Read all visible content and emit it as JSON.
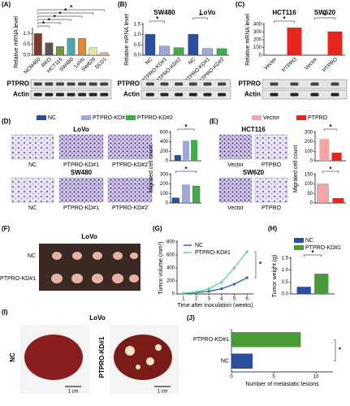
{
  "chart_data": [
    {
      "type": "bar",
      "panel": "(A)",
      "ylabel": "Relative mRNA level",
      "categories": [
        "NCM460",
        "RKO",
        "HCT116",
        "SW480",
        "LoVo",
        "SW620",
        "DLD1"
      ],
      "values": [
        1.0,
        0.57,
        0.4,
        0.78,
        0.78,
        0.35,
        0.12
      ],
      "colors": [
        "#7b3b30",
        "#555555",
        "#6f9a3c",
        "#4aa7ad",
        "#dd8a30",
        "#e9e2a6",
        "#f2b27e"
      ],
      "ylim": [
        0,
        1.2
      ],
      "yticks": [
        {
          "value": 0,
          "label": "0.0"
        },
        {
          "value": 0.5,
          "label": "0.5"
        },
        {
          "value": 1,
          "label": "1.0"
        }
      ],
      "significance": [
        "*",
        "*",
        "*",
        "*",
        "*",
        "*"
      ],
      "blot_labels": [
        "PTPRO",
        "Actin"
      ]
    },
    {
      "type": "bar",
      "panel": "(B)",
      "ylabel": "Relative mRNA level",
      "groups": [
        "SW480",
        "LoVo"
      ],
      "categories": [
        "NC",
        "PTPRO-KD#1",
        "PTPRO-KD#2",
        "NC",
        "PTPRO-KD#1",
        "PTPRO-KD#2"
      ],
      "values": [
        1.02,
        0.44,
        0.37,
        1.02,
        0.33,
        0.32
      ],
      "colors": [
        "#2a4f9e",
        "#9fa8da",
        "#3cae4a",
        "#2a4f9e",
        "#9fa8da",
        "#3cae4a"
      ],
      "ylim": [
        0,
        1.5
      ],
      "yticks": [
        {
          "value": 0,
          "label": "0.0"
        },
        {
          "value": 0.5,
          "label": "0.5"
        },
        {
          "value": 1,
          "label": "1.0"
        },
        {
          "value": 1.5,
          "label": "1.5"
        }
      ],
      "significance": [
        "*",
        "*"
      ],
      "blot_labels": [
        "PTPRO",
        "Actin"
      ]
    },
    {
      "type": "bar",
      "panel": "(C)",
      "ylabel": "Relative mRNA level",
      "groups": [
        "HCT116",
        "SW620"
      ],
      "categories": [
        "Vector",
        "PTPRO",
        "Vector",
        "PTPRO"
      ],
      "values": [
        1,
        355,
        1,
        305
      ],
      "colors": [
        "#f4a6a6",
        "#e8261f",
        "#f4a6a6",
        "#e8261f"
      ],
      "ylim": [
        0,
        400
      ],
      "yticks": [
        0,
        100,
        200,
        300,
        400
      ],
      "significance": [
        "*",
        "*"
      ],
      "blot_labels": [
        "PTPRO",
        "Actin"
      ]
    },
    {
      "type": "bar",
      "ylabel": "Migrated cell count",
      "categories": [
        null
      ],
      "series": [
        {
          "name": "NC",
          "color": "#2a4f9e",
          "values": [
            120
          ]
        },
        {
          "name": "PTPRO-KD#1",
          "color": "#9fa8da",
          "values": [
            420
          ]
        },
        {
          "name": "PTPRO-KD#2",
          "color": "#3cae4a",
          "values": [
            440
          ]
        }
      ],
      "ylim": [
        0,
        600
      ],
      "yticks": [
        0,
        200,
        400,
        600
      ],
      "significance": [
        "*"
      ]
    },
    {
      "type": "bar",
      "categories": [
        null,
        null,
        null
      ],
      "values": [
        55,
        190,
        180
      ],
      "colors": [
        "#2a4f9e",
        "#9fa8da",
        "#3cae4a"
      ],
      "ylim": [
        0,
        300
      ],
      "yticks": [
        0,
        100,
        200,
        300
      ],
      "significance": [
        "*"
      ]
    },
    {
      "type": "bar",
      "ylabel": "Migrated cell count",
      "categories": [
        null
      ],
      "series": [
        {
          "name": "Vector",
          "color": "#f4a6a6",
          "values": [
            230
          ]
        },
        {
          "name": "PTPRO",
          "color": "#e8261f",
          "values": [
            85
          ]
        }
      ],
      "ylim": [
        0,
        300
      ],
      "yticks": [
        0,
        100,
        200,
        300
      ],
      "significance": [
        "*"
      ]
    },
    {
      "type": "bar",
      "categories": [
        null,
        null
      ],
      "values": [
        100,
        25
      ],
      "colors": [
        "#f4a6a6",
        "#e8261f"
      ],
      "ylim": [
        0,
        150
      ],
      "yticks": [
        0,
        50,
        100,
        150
      ],
      "significance": [
        "*"
      ]
    },
    {
      "type": "line",
      "panel": "(G)",
      "ylabel": "Tumor volume (mm³)",
      "xlabel": "Time after inoculation (weeks)",
      "x": [
        1,
        2,
        3,
        4,
        5,
        6
      ],
      "series": [
        {
          "name": "NC",
          "color": "#2a5fb5",
          "values": [
            10,
            20,
            40,
            80,
            150,
            250
          ]
        },
        {
          "name": "PTPRO-KD#1",
          "color": "#5fd08e",
          "values": [
            10,
            30,
            80,
            180,
            400,
            650
          ]
        }
      ],
      "xlim": [
        0.5,
        6.5
      ],
      "xticks": [
        1,
        2,
        3,
        4,
        5,
        6
      ],
      "ylim": [
        0,
        800
      ],
      "yticks": [
        0,
        200,
        400,
        600,
        800
      ],
      "significance": [
        "*"
      ]
    },
    {
      "type": "bar",
      "panel": "(H)",
      "ylabel": "Tumor weight (g)",
      "categories": [
        null
      ],
      "series": [
        {
          "name": "NC",
          "color": "#2a4f9e",
          "values": [
            0.3
          ]
        },
        {
          "name": "PTPRO-KD#1",
          "color": "#4a9a3a",
          "values": [
            0.85
          ]
        }
      ],
      "ylim": [
        0,
        1.5
      ],
      "yticks": [
        {
          "value": 0,
          "label": "0.0"
        },
        {
          "value": 0.5,
          "label": "0.5"
        },
        {
          "value": 1,
          "label": "1.0"
        },
        {
          "value": 1.5,
          "label": "1.5"
        }
      ],
      "significance": [
        "*"
      ]
    },
    {
      "type": "hbar",
      "panel": "(J)",
      "xlabel": "Number of metastatic lesions",
      "categories": [
        "PTPRO-KD#1",
        "NC"
      ],
      "values": [
        8.2,
        2.5
      ],
      "colors": [
        "#4a9a3a",
        "#2a4f9e"
      ],
      "xlim": [
        0,
        12
      ],
      "xticks": [
        0,
        5,
        10
      ],
      "significance": [
        "*"
      ]
    }
  ],
  "figure": {
    "d": {
      "panel": "(D)",
      "groups": [
        {
          "title": "LoVo",
          "labels": [
            "NC",
            "PTPRO-KD#1",
            "PTPRO-KD#2"
          ]
        },
        {
          "title": "SW480",
          "labels": [
            "NC",
            "PTPRO-KD#1",
            "PTPRO-KD#2"
          ]
        }
      ]
    },
    "e": {
      "panel": "(E)",
      "groups": [
        {
          "title": "HCT116",
          "labels": [
            "Vector",
            "PTPRO"
          ]
        },
        {
          "title": "SW620",
          "labels": [
            "Vector",
            "PTPRO"
          ]
        }
      ]
    },
    "f": {
      "panel": "(F)",
      "title": "LoVo",
      "rows": [
        "NC",
        "PTPRO-KD#1"
      ]
    },
    "i": {
      "panel": "(I)",
      "title": "LoVo",
      "samples": [
        "NC",
        "PTPRO-KD#1"
      ],
      "scale": [
        "1 cm",
        "1 cm"
      ]
    }
  }
}
